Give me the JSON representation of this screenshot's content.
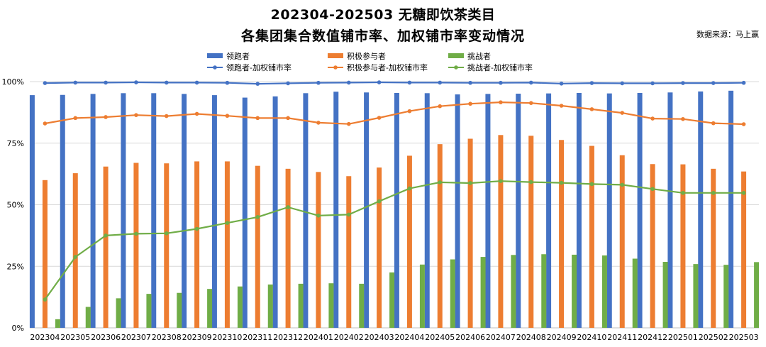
{
  "chart_data": {
    "type": "bar",
    "title": "202304-202503 无糖即饮茶类目",
    "subtitle": "各集团集合数值铺市率、加权铺市率变动情况",
    "source": "数据来源：马上赢",
    "categories": [
      "202304",
      "202305",
      "202306",
      "202307",
      "202308",
      "202309",
      "202310",
      "202311",
      "202312",
      "202401",
      "202402",
      "202403",
      "202404",
      "202405",
      "202406",
      "202407",
      "202408",
      "202409",
      "202410",
      "202411",
      "202412",
      "202501",
      "202502",
      "202503"
    ],
    "ylim": [
      0,
      100
    ],
    "yticks": [
      "0%",
      "25%",
      "50%",
      "75%",
      "100%"
    ],
    "grid": true,
    "legend_position": "top",
    "bar_series": [
      {
        "name": "领跑者",
        "color": "#4472C4",
        "values": [
          94.5,
          94.6,
          95.0,
          95.3,
          95.3,
          95.0,
          94.5,
          93.5,
          94.0,
          95.3,
          95.9,
          95.6,
          95.4,
          95.3,
          94.8,
          95.0,
          95.1,
          95.2,
          95.4,
          95.2,
          95.4,
          95.6,
          96.0,
          96.3
        ]
      },
      {
        "name": "积极参与者",
        "color": "#ED7D31",
        "values": [
          60.0,
          62.8,
          65.5,
          67.0,
          66.8,
          67.6,
          67.6,
          65.8,
          64.6,
          63.3,
          61.6,
          65.1,
          69.9,
          74.6,
          76.8,
          78.3,
          78.0,
          76.3,
          73.9,
          70.1,
          66.5,
          66.4,
          64.6,
          63.5
        ]
      },
      {
        "name": "挑战者",
        "color": "#70AD47",
        "values": [
          3.5,
          8.5,
          12.0,
          13.8,
          14.2,
          15.8,
          16.8,
          17.6,
          17.9,
          18.1,
          17.9,
          22.5,
          25.7,
          27.8,
          28.8,
          29.6,
          29.9,
          29.7,
          29.4,
          28.1,
          26.8,
          25.9,
          25.6,
          26.7
        ]
      }
    ],
    "line_series": [
      {
        "name": "领跑者-加权铺市率",
        "color": "#4472C4",
        "values": [
          99.4,
          99.6,
          99.6,
          99.7,
          99.6,
          99.6,
          99.5,
          99.1,
          99.3,
          99.5,
          99.6,
          99.7,
          99.6,
          99.6,
          99.5,
          99.5,
          99.6,
          99.2,
          99.4,
          99.3,
          99.3,
          99.4,
          99.4,
          99.5
        ]
      },
      {
        "name": "积极参与者-加权铺市率",
        "color": "#ED7D31",
        "values": [
          83.0,
          85.2,
          85.6,
          86.4,
          86.0,
          86.9,
          86.1,
          85.2,
          85.2,
          83.3,
          82.8,
          85.3,
          88.0,
          90.0,
          91.0,
          91.6,
          91.3,
          90.2,
          88.8,
          87.3,
          85.0,
          84.8,
          83.1,
          82.7
        ]
      },
      {
        "name": "挑战者-加权铺市率",
        "color": "#70AD47",
        "values": [
          11.5,
          28.8,
          37.5,
          38.2,
          38.4,
          40.2,
          42.6,
          45.0,
          49.0,
          45.6,
          46.0,
          51.4,
          56.6,
          59.1,
          58.8,
          59.6,
          59.2,
          58.9,
          58.4,
          58.1,
          56.4,
          54.8,
          54.8,
          54.8
        ]
      }
    ]
  }
}
